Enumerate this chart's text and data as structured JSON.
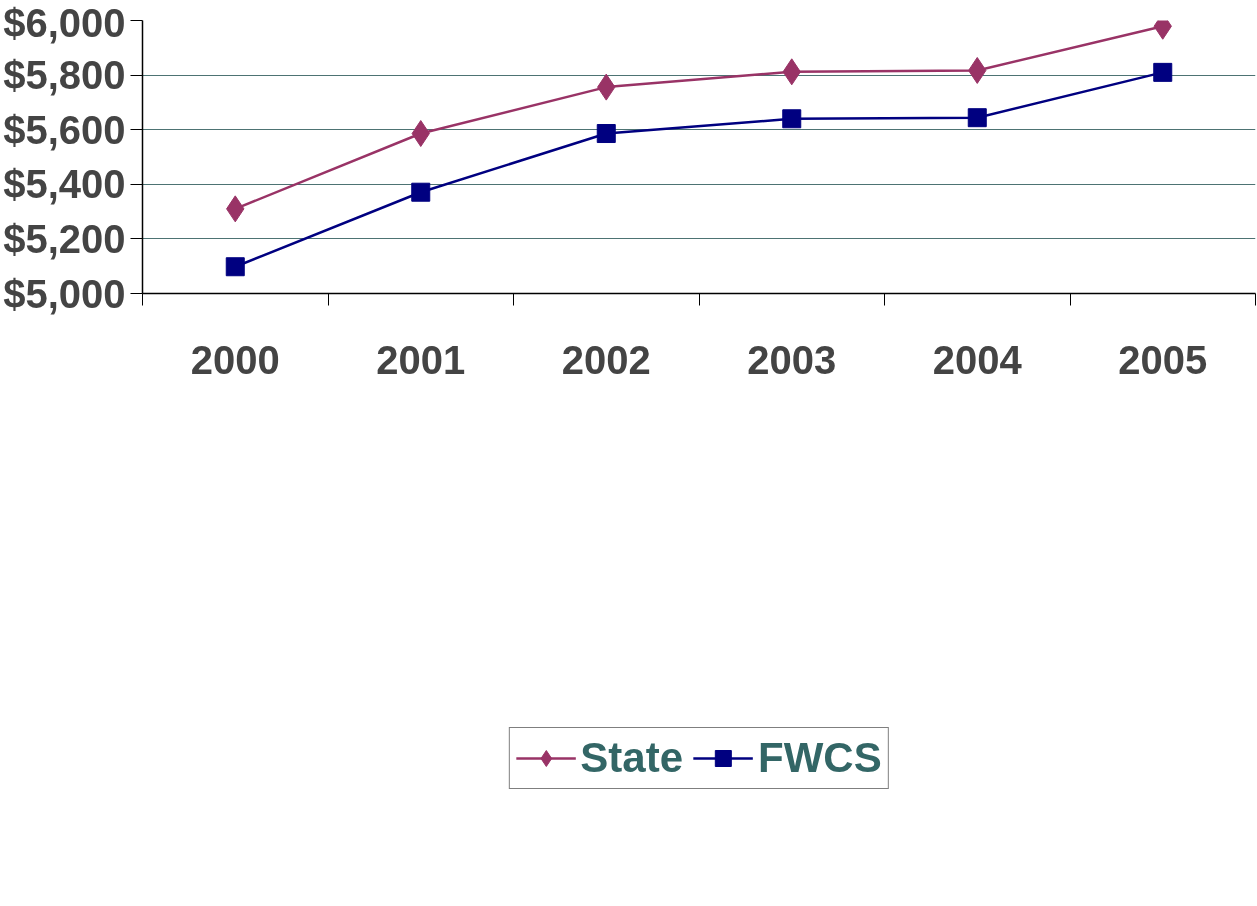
{
  "chart_data": {
    "type": "line",
    "categories": [
      "2000",
      "2001",
      "2002",
      "2003",
      "2004",
      "2005"
    ],
    "series": [
      {
        "name": "State",
        "color": "#993366",
        "marker": "diamond",
        "values": [
          5310,
          5586,
          5756,
          5812,
          5817,
          5979
        ]
      },
      {
        "name": "FWCS",
        "color": "#000080",
        "marker": "square",
        "values": [
          5098,
          5371,
          5586,
          5640,
          5644,
          5810
        ]
      }
    ],
    "ylim": [
      5000,
      6000
    ],
    "yticks": [
      {
        "value": 5000,
        "label": "$5,000"
      },
      {
        "value": 5200,
        "label": "$5,200"
      },
      {
        "value": 5400,
        "label": "$5,400"
      },
      {
        "value": 5600,
        "label": "$5,600"
      },
      {
        "value": 5800,
        "label": "$5,800"
      },
      {
        "value": 6000,
        "label": "$6,000"
      }
    ],
    "grid": "y",
    "legend": "bottom",
    "line_style": "solid"
  }
}
